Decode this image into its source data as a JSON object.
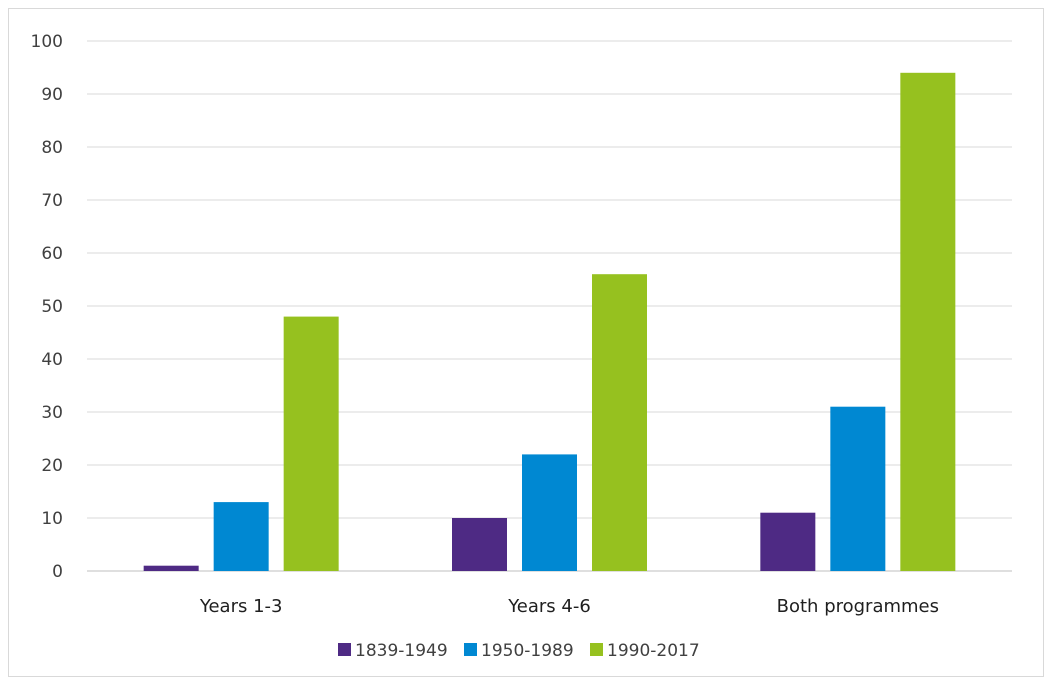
{
  "chart_data": {
    "type": "bar",
    "categories": [
      "Years 1-3",
      "Years 4-6",
      "Both programmes"
    ],
    "series": [
      {
        "name": "1839-1949",
        "values": [
          1,
          10,
          11
        ],
        "color": "#4e2a84"
      },
      {
        "name": "1950-1989",
        "values": [
          13,
          22,
          31
        ],
        "color": "#0088d2"
      },
      {
        "name": "1990-2017",
        "values": [
          48,
          56,
          94
        ],
        "color": "#96c11f"
      }
    ],
    "ylim": [
      0,
      100
    ],
    "yticks": [
      0,
      10,
      20,
      30,
      40,
      50,
      60,
      70,
      80,
      90,
      100
    ],
    "grid": true,
    "legend_position": "bottom"
  }
}
